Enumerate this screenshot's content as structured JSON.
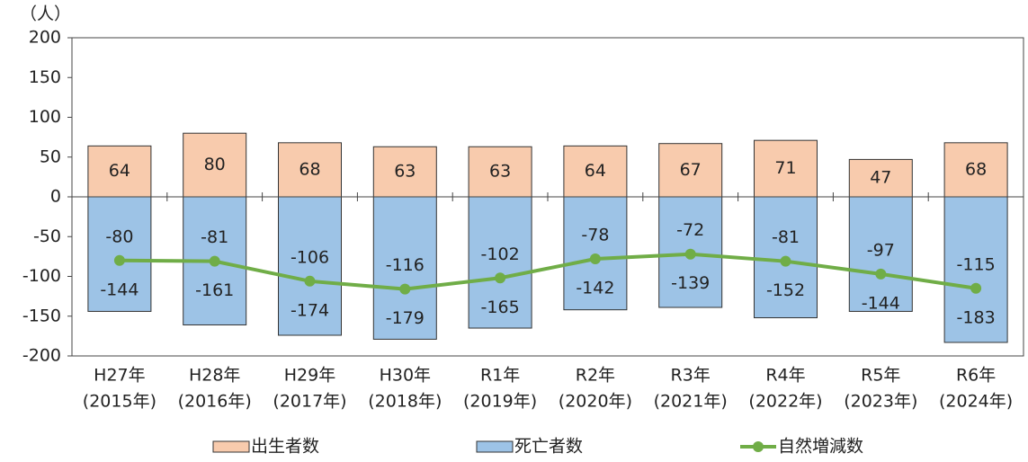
{
  "chart_data": {
    "type": "bar",
    "y_label": "（人）",
    "categories": [
      [
        "H27年",
        "(2015年)"
      ],
      [
        "H28年",
        "(2016年)"
      ],
      [
        "H29年",
        "(2017年)"
      ],
      [
        "H30年",
        "(2018年)"
      ],
      [
        "R1年",
        "(2019年)"
      ],
      [
        "R2年",
        "(2020年)"
      ],
      [
        "R3年",
        "(2021年)"
      ],
      [
        "R4年",
        "(2022年)"
      ],
      [
        "R5年",
        "(2023年)"
      ],
      [
        "R6年",
        "(2024年)"
      ]
    ],
    "series": [
      {
        "name": "出生者数",
        "type": "bar",
        "color": "#f8cbad",
        "values": [
          64,
          80,
          68,
          63,
          63,
          64,
          67,
          71,
          47,
          68
        ]
      },
      {
        "name": "死亡者数",
        "type": "bar",
        "color": "#9dc3e6",
        "values": [
          -144,
          -161,
          -174,
          -179,
          -165,
          -142,
          -139,
          -152,
          -144,
          -183
        ]
      },
      {
        "name": "自然増減数",
        "type": "line",
        "color": "#70ad47",
        "values": [
          -80,
          -81,
          -106,
          -116,
          -102,
          -78,
          -72,
          -81,
          -97,
          -115
        ]
      }
    ],
    "ylim": [
      -200,
      200
    ],
    "yticks": [
      -200,
      -150,
      -100,
      -50,
      0,
      50,
      100,
      150,
      200
    ]
  }
}
